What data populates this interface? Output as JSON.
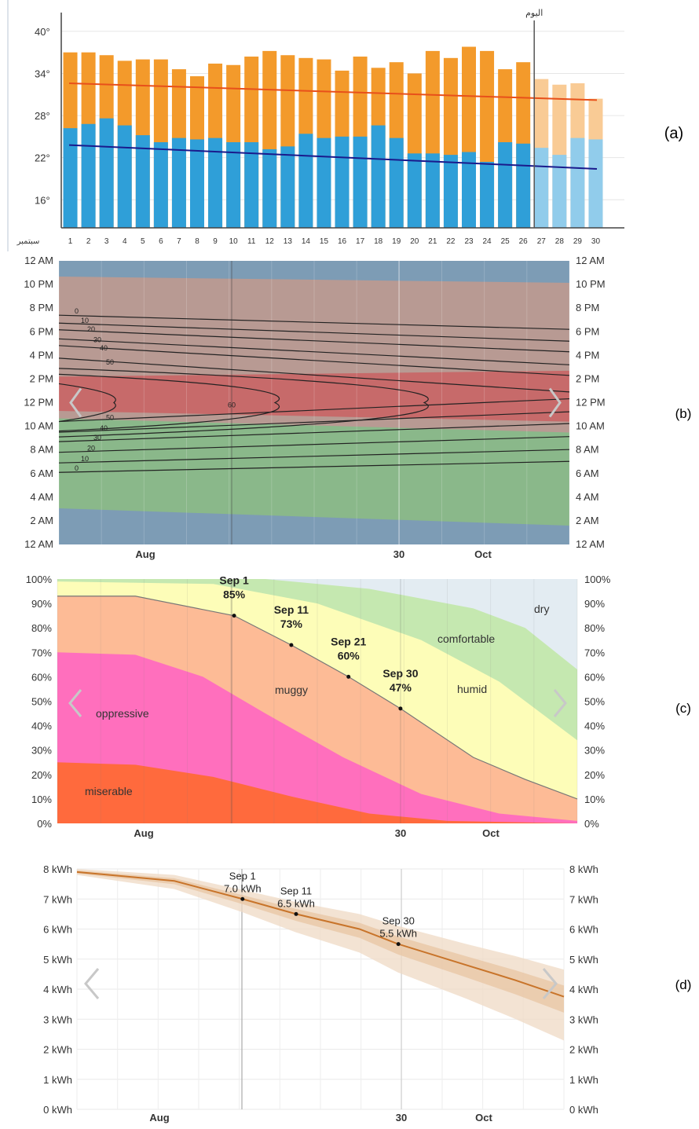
{
  "panel_labels": {
    "a": "(a)",
    "b": "(b)",
    "c": "(c)",
    "d": "(d)"
  },
  "colors": {
    "high_bar": "#f39a2b",
    "high_bar_future": "#f9cb95",
    "low_bar": "#2f9fd8",
    "low_bar_future": "#91cceb",
    "high_line": "#e8501a",
    "low_line": "#1a1a8c",
    "band_cold": "#7d9cb5",
    "band_warm": "#b89a93",
    "band_hot": "#c76a6a",
    "band_green": "#8ab88a",
    "miserable": "#ff6a3d",
    "oppressive": "#ff6fbd",
    "muggy": "#fdbb96",
    "humid": "#fdfdb8",
    "comfortable": "#c5e8b0",
    "dry": "#e3ecf2",
    "energy_line": "#c8742a",
    "energy_band": "#efd9c4"
  },
  "chart_data": [
    {
      "id": "a",
      "type": "bar",
      "month_label": "سبتمبر",
      "today_label": "اليوم",
      "today_day": 26,
      "ylim": [
        12,
        42
      ],
      "yticks": [
        {
          "v": 40,
          "label": "40°"
        },
        {
          "v": 34,
          "label": "34°"
        },
        {
          "v": 28,
          "label": "28°"
        },
        {
          "v": 22,
          "label": "22°"
        },
        {
          "v": 16,
          "label": "16°"
        }
      ],
      "categories": [
        "1",
        "2",
        "3",
        "4",
        "5",
        "6",
        "7",
        "8",
        "9",
        "10",
        "11",
        "12",
        "13",
        "14",
        "15",
        "16",
        "17",
        "18",
        "19",
        "20",
        "21",
        "22",
        "23",
        "24",
        "25",
        "26",
        "27",
        "28",
        "29",
        "30"
      ],
      "series": [
        {
          "values": [
            37,
            37,
            36.6,
            35.8,
            36,
            36,
            34.6,
            33.6,
            35.4,
            35.2,
            36.4,
            37.2,
            36.6,
            36.2,
            36,
            34.4,
            36.4,
            34.8,
            35.6,
            34,
            37.2,
            36.2,
            37.8,
            37.2,
            34.6,
            35.6,
            33.2,
            32.4,
            32.6,
            30.4
          ]
        },
        {
          "values": [
            26.2,
            26.8,
            27.6,
            26.6,
            25.2,
            24.2,
            24.8,
            24.6,
            24.8,
            24.2,
            24.2,
            23.2,
            23.6,
            25.4,
            24.8,
            25,
            25,
            26.6,
            24.8,
            22.6,
            22.6,
            22.4,
            22.8,
            21.4,
            24.2,
            24,
            23.4,
            22.4,
            24.8,
            24.6
          ]
        }
      ],
      "trend_high": [
        32.6,
        30.2
      ],
      "trend_low": [
        23.8,
        20.4
      ]
    },
    {
      "id": "b",
      "type": "heatmap",
      "yticks": [
        "12 AM",
        "10 PM",
        "8 PM",
        "6 PM",
        "4 PM",
        "2 PM",
        "12 PM",
        "10 AM",
        "8 AM",
        "6 AM",
        "4 AM",
        "2 AM",
        "12 AM"
      ],
      "xticks": [
        {
          "label": "Aug",
          "pos": "aug"
        },
        {
          "label": "30",
          "pos": "sep30"
        },
        {
          "label": "Oct",
          "pos": "oct"
        }
      ],
      "contour_levels": [
        "0",
        "10",
        "20",
        "30",
        "40",
        "50",
        "60"
      ]
    },
    {
      "id": "c",
      "type": "area",
      "ylim": [
        0,
        100
      ],
      "yticks": [
        "100%",
        "90%",
        "80%",
        "70%",
        "60%",
        "50%",
        "40%",
        "30%",
        "20%",
        "10%",
        "0%"
      ],
      "xticks": [
        {
          "label": "Aug",
          "pos": "aug"
        },
        {
          "label": "30",
          "pos": "sep30"
        },
        {
          "label": "Oct",
          "pos": "oct"
        }
      ],
      "categories": [
        "miserable",
        "oppressive",
        "muggy",
        "humid",
        "comfortable",
        "dry"
      ],
      "annotations": [
        {
          "date": "Sep 1",
          "value": "85%",
          "y": 85
        },
        {
          "date": "Sep 11",
          "value": "73%",
          "y": 73
        },
        {
          "date": "Sep 21",
          "value": "60%",
          "y": 60
        },
        {
          "date": "Sep 30",
          "value": "47%",
          "y": 47
        }
      ]
    },
    {
      "id": "d",
      "type": "line",
      "ylim": [
        0,
        8
      ],
      "yticks": [
        "8 kWh",
        "7 kWh",
        "6 kWh",
        "5 kWh",
        "4 kWh",
        "3 kWh",
        "2 kWh",
        "1 kWh",
        "0 kWh"
      ],
      "xticks": [
        {
          "label": "Aug",
          "pos": "aug"
        },
        {
          "label": "30",
          "pos": "sep30"
        },
        {
          "label": "Oct",
          "pos": "oct"
        }
      ],
      "annotations": [
        {
          "date": "Sep 1",
          "value": "7.0 kWh",
          "y": 7.0
        },
        {
          "date": "Sep 11",
          "value": "6.5 kWh",
          "y": 6.5
        },
        {
          "date": "Sep 30",
          "value": "5.5 kWh",
          "y": 5.5
        }
      ]
    }
  ]
}
